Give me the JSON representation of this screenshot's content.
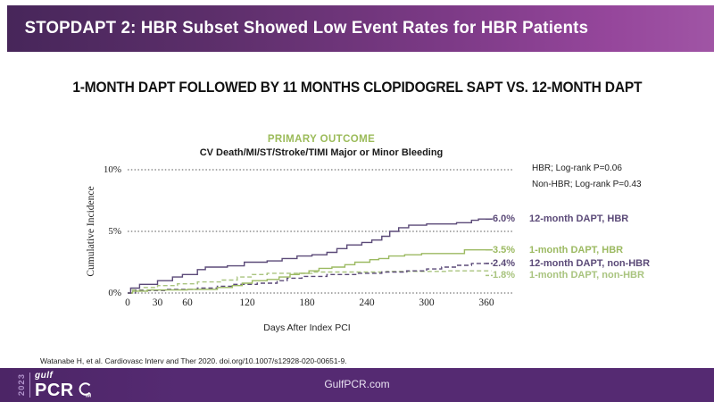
{
  "slide": {
    "header": {
      "title": "STOPDAPT 2: HBR Subset Showed Low Event Rates for HBR Patients"
    },
    "subtitle": "1-MONTH DAPT FOLLOWED BY 11 MONTHS CLOPIDOGREL SAPT VS. 12-MONTH DAPT",
    "citation": "Watanabe H, et al. Cardiovasc Interv and Ther 2020. doi.org/10.1007/s12928-020-00651-9.",
    "footer": {
      "website": "GulfPCR.com",
      "logo": {
        "year": "2023",
        "brand_top": "gulf",
        "brand_main": "PCR",
        "icon": "cim-circle-icon"
      }
    },
    "colors": {
      "header_purple_left": "#47265a",
      "header_purple_right": "#a055a5",
      "footer_purple": "#552a72",
      "series_purple": "#5b4a78",
      "series_green": "#9bbb59",
      "grid": "#555555"
    }
  },
  "chart_data": {
    "type": "line",
    "subtype": "kaplan-meier-step",
    "title": "PRIMARY OUTCOME",
    "endpoint_title": "CV Death/MI/ST/Stroke/TIMI Major or Minor Bleeding",
    "xlabel": "Days After Index PCI",
    "ylabel": "Cumulative Incidence",
    "xlim": [
      0,
      375
    ],
    "ylim": [
      0,
      10
    ],
    "xticks": [
      0,
      30,
      60,
      120,
      180,
      240,
      300,
      360
    ],
    "yticks": [
      {
        "value": 0,
        "label": "0%"
      },
      {
        "value": 5,
        "label": "5%"
      },
      {
        "value": 10,
        "label": "10%"
      }
    ],
    "grid": "horizontal dotted",
    "legend_position": "right of plot, value then name",
    "annotations": [
      "HBR; Log-rank P=0.06",
      "Non-HBR; Log-rank P=0.43"
    ],
    "series": [
      {
        "name": "12-month DAPT, HBR",
        "end_label": "6.0%",
        "end_value": 6.0,
        "color": "#5b4a78",
        "line_style": "solid",
        "steps": [
          [
            0,
            0
          ],
          [
            3,
            0.4
          ],
          [
            12,
            0.7
          ],
          [
            30,
            1.0
          ],
          [
            45,
            1.3
          ],
          [
            55,
            1.5
          ],
          [
            70,
            1.9
          ],
          [
            78,
            2.1
          ],
          [
            100,
            2.2
          ],
          [
            117,
            2.5
          ],
          [
            140,
            2.6
          ],
          [
            155,
            2.8
          ],
          [
            170,
            3.0
          ],
          [
            185,
            3.1
          ],
          [
            200,
            3.3
          ],
          [
            210,
            3.6
          ],
          [
            220,
            3.9
          ],
          [
            235,
            4.1
          ],
          [
            245,
            4.3
          ],
          [
            255,
            4.6
          ],
          [
            263,
            5.0
          ],
          [
            272,
            5.3
          ],
          [
            282,
            5.5
          ],
          [
            300,
            5.6
          ],
          [
            330,
            5.7
          ],
          [
            345,
            5.9
          ],
          [
            352,
            6.0
          ],
          [
            365,
            6.0
          ]
        ]
      },
      {
        "name": "1-month DAPT, HBR",
        "end_label": "3.5%",
        "end_value": 3.5,
        "color": "#9cba62",
        "line_style": "solid",
        "steps": [
          [
            0,
            0
          ],
          [
            5,
            0.15
          ],
          [
            20,
            0.25
          ],
          [
            60,
            0.3
          ],
          [
            90,
            0.45
          ],
          [
            105,
            0.6
          ],
          [
            115,
            0.8
          ],
          [
            125,
            1.0
          ],
          [
            140,
            1.1
          ],
          [
            152,
            1.3
          ],
          [
            163,
            1.5
          ],
          [
            172,
            1.6
          ],
          [
            182,
            1.8
          ],
          [
            192,
            2.0
          ],
          [
            205,
            2.1
          ],
          [
            218,
            2.3
          ],
          [
            228,
            2.5
          ],
          [
            243,
            2.7
          ],
          [
            252,
            2.8
          ],
          [
            262,
            3.0
          ],
          [
            278,
            3.1
          ],
          [
            295,
            3.2
          ],
          [
            338,
            3.5
          ],
          [
            365,
            3.5
          ]
        ]
      },
      {
        "name": "12-month DAPT, non-HBR",
        "end_label": "2.4%",
        "end_value": 2.4,
        "color": "#5b4a78",
        "line_style": "dashed",
        "steps": [
          [
            0,
            0
          ],
          [
            8,
            0.2
          ],
          [
            40,
            0.3
          ],
          [
            70,
            0.4
          ],
          [
            90,
            0.55
          ],
          [
            105,
            0.7
          ],
          [
            130,
            0.8
          ],
          [
            150,
            1.0
          ],
          [
            160,
            1.2
          ],
          [
            175,
            1.35
          ],
          [
            200,
            1.5
          ],
          [
            230,
            1.6
          ],
          [
            255,
            1.7
          ],
          [
            280,
            1.8
          ],
          [
            300,
            1.95
          ],
          [
            315,
            2.1
          ],
          [
            330,
            2.25
          ],
          [
            345,
            2.4
          ],
          [
            365,
            2.4
          ]
        ]
      },
      {
        "name": "1-month DAPT, non-HBR",
        "end_label": "1.8%",
        "end_value": 1.8,
        "color": "#a9c47f",
        "line_style": "dashed",
        "steps": [
          [
            0,
            0
          ],
          [
            4,
            0.25
          ],
          [
            15,
            0.45
          ],
          [
            30,
            0.6
          ],
          [
            50,
            0.75
          ],
          [
            70,
            0.9
          ],
          [
            95,
            1.05
          ],
          [
            110,
            1.3
          ],
          [
            125,
            1.5
          ],
          [
            140,
            1.6
          ],
          [
            185,
            1.7
          ],
          [
            260,
            1.75
          ],
          [
            320,
            1.8
          ],
          [
            365,
            1.8
          ]
        ]
      }
    ]
  }
}
